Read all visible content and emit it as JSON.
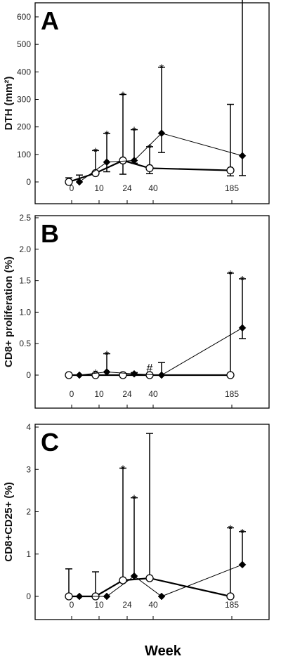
{
  "x_label": "Week",
  "chart_data": [
    {
      "type": "line",
      "panel_label": "A",
      "ylabel": "DTH (mm²)",
      "ylim": [
        0,
        600
      ],
      "yticks": [
        "0",
        "100",
        "200",
        "300",
        "400",
        "500",
        "600"
      ],
      "x_tick_labels": [
        "0",
        "10",
        "24",
        "40",
        "185"
      ],
      "series": [
        {
          "marker": "open-circle",
          "points": [
            {
              "x": "0",
              "y": 0,
              "err_lo": 0,
              "err_hi": 15,
              "sig": ""
            },
            {
              "x": "10",
              "y": 32,
              "err_lo": 5,
              "err_hi": 82,
              "sig": "*"
            },
            {
              "x": "24",
              "y": 78,
              "err_lo": 50,
              "err_hi": 240,
              "sig": "*"
            },
            {
              "x": "40",
              "y": 50,
              "err_lo": 20,
              "err_hi": 78,
              "sig": "*"
            },
            {
              "x": "185",
              "y": 42,
              "err_lo": 20,
              "err_hi": 240,
              "sig": ""
            }
          ]
        },
        {
          "marker": "filled-diamond",
          "points": [
            {
              "x": "0",
              "y": 0,
              "err_lo": 0,
              "err_hi": 25,
              "sig": ""
            },
            {
              "x": "10",
              "y": 72,
              "err_lo": 35,
              "err_hi": 104,
              "sig": "*"
            },
            {
              "x": "24",
              "y": 78,
              "err_lo": 10,
              "err_hi": 112,
              "sig": "*"
            },
            {
              "x": "40",
              "y": 177,
              "err_lo": 70,
              "err_hi": 240,
              "sig": "*"
            },
            {
              "x": "185",
              "y": 95,
              "err_lo": 72,
              "err_hi": 595,
              "sig": ""
            }
          ]
        }
      ]
    },
    {
      "type": "line",
      "panel_label": "B",
      "ylabel": "CD8+ proliferation (%)",
      "ylim": [
        -0.5,
        2.5
      ],
      "yticks": [
        "0",
        "0.5",
        "1.0",
        "1.5",
        "2.0",
        "2.5"
      ],
      "x_tick_labels": [
        "0",
        "10",
        "24",
        "40",
        "185"
      ],
      "series": [
        {
          "marker": "open-circle",
          "points": [
            {
              "x": "0",
              "y": 0,
              "err_lo": 0,
              "err_hi": 0,
              "sig": ""
            },
            {
              "x": "10",
              "y": 0,
              "err_lo": 0,
              "err_hi": 0,
              "sig": "*"
            },
            {
              "x": "24",
              "y": 0,
              "err_lo": 0,
              "err_hi": 0,
              "sig": ""
            },
            {
              "x": "40",
              "y": 0,
              "err_lo": 0,
              "err_hi": 0.02,
              "sig": "#"
            },
            {
              "x": "185",
              "y": 0,
              "err_lo": 0,
              "err_hi": 1.62,
              "sig": "*"
            }
          ]
        },
        {
          "marker": "filled-diamond",
          "points": [
            {
              "x": "0",
              "y": 0,
              "err_lo": 0,
              "err_hi": 0,
              "sig": ""
            },
            {
              "x": "10",
              "y": 0.05,
              "err_lo": 0,
              "err_hi": 0.29,
              "sig": "*"
            },
            {
              "x": "24",
              "y": 0.02,
              "err_lo": 0,
              "err_hi": 0.02,
              "sig": ""
            },
            {
              "x": "40",
              "y": 0,
              "err_lo": 0,
              "err_hi": 0.2,
              "sig": ""
            },
            {
              "x": "185",
              "y": 0.75,
              "err_lo": 0.17,
              "err_hi": 0.78,
              "sig": "*"
            }
          ]
        }
      ]
    },
    {
      "type": "line",
      "panel_label": "C",
      "ylabel": "CD8+CD25+ (%)",
      "ylim": [
        -0.5,
        4
      ],
      "yticks": [
        "0",
        "1",
        "2",
        "3",
        "4"
      ],
      "x_tick_labels": [
        "0",
        "10",
        "24",
        "40",
        "185"
      ],
      "series": [
        {
          "marker": "open-circle",
          "points": [
            {
              "x": "0",
              "y": 0,
              "err_lo": 0,
              "err_hi": 0.65,
              "sig": ""
            },
            {
              "x": "10",
              "y": 0,
              "err_lo": 0,
              "err_hi": 0.58,
              "sig": ""
            },
            {
              "x": "24",
              "y": 0.38,
              "err_lo": 0,
              "err_hi": 2.65,
              "sig": "*"
            },
            {
              "x": "40",
              "y": 0.43,
              "err_lo": 0,
              "err_hi": 3.42,
              "sig": ""
            },
            {
              "x": "185",
              "y": 0,
              "err_lo": 0,
              "err_hi": 1.62,
              "sig": "*"
            }
          ]
        },
        {
          "marker": "filled-diamond",
          "points": [
            {
              "x": "0",
              "y": 0,
              "err_lo": 0,
              "err_hi": 0,
              "sig": ""
            },
            {
              "x": "10",
              "y": 0,
              "err_lo": 0,
              "err_hi": 0,
              "sig": ""
            },
            {
              "x": "24",
              "y": 0.48,
              "err_lo": 0,
              "err_hi": 1.85,
              "sig": "*"
            },
            {
              "x": "40",
              "y": 0,
              "err_lo": 0,
              "err_hi": 0,
              "sig": ""
            },
            {
              "x": "185",
              "y": 0.75,
              "err_lo": 0,
              "err_hi": 0.78,
              "sig": "*"
            }
          ]
        }
      ]
    }
  ]
}
